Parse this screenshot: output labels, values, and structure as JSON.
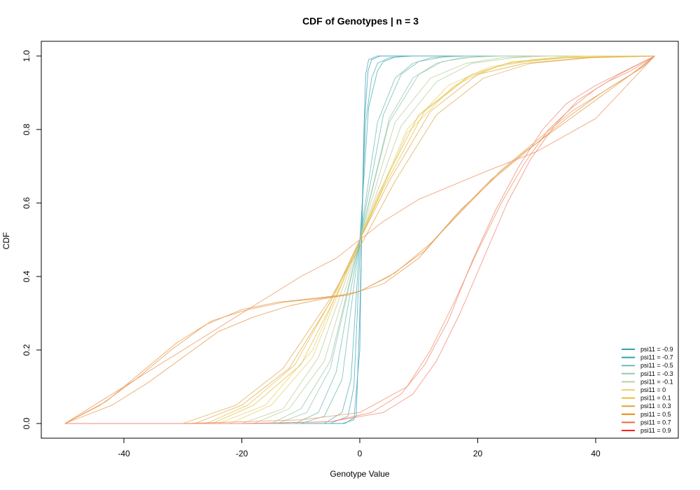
{
  "chart_data": {
    "type": "line",
    "title": "CDF of Genotypes | n = 3",
    "xlabel": "Genotype Value",
    "ylabel": "CDF",
    "xlim": [
      -50,
      50
    ],
    "ylim": [
      0,
      1
    ],
    "x_ticks": [
      -40,
      -20,
      0,
      20,
      40
    ],
    "x_tick_labels": [
      "-40",
      "-20",
      "0",
      "20",
      "40"
    ],
    "y_ticks": [
      0,
      0.2,
      0.4,
      0.6,
      0.8,
      1
    ],
    "y_tick_labels": [
      "0.0",
      "0.2",
      "0.4",
      "0.6",
      "0.8",
      "1.0"
    ],
    "grid": false,
    "legend_position": "bottom-right",
    "series": [
      {
        "name": "psi11 = -0.9",
        "color": "#46a2bd",
        "curves": [
          {
            "x": [
              -50,
              -3,
              -1,
              0,
              0.3,
              0.7,
              1,
              1.5,
              3,
              50
            ],
            "y": [
              0,
              0,
              0.01,
              0.2,
              0.5,
              0.8,
              0.95,
              0.99,
              1,
              1
            ]
          },
          {
            "x": [
              -50,
              -2.5,
              -0.6,
              0,
              0.4,
              0.8,
              1.4,
              2,
              3.5,
              50
            ],
            "y": [
              0,
              0,
              0.02,
              0.3,
              0.55,
              0.82,
              0.96,
              0.99,
              1,
              1
            ]
          }
        ]
      },
      {
        "name": "psi11 = -0.7",
        "color": "#4fb0b6",
        "curves": [
          {
            "x": [
              -50,
              -5,
              -2,
              -1,
              0,
              1,
              2,
              3,
              5,
              8,
              50
            ],
            "y": [
              0,
              0,
              0.02,
              0.1,
              0.45,
              0.82,
              0.94,
              0.98,
              0.995,
              1,
              1
            ]
          },
          {
            "x": [
              -50,
              -6,
              -3,
              -1.5,
              0,
              1.5,
              3,
              4,
              6,
              9,
              50
            ],
            "y": [
              0,
              0,
              0.03,
              0.12,
              0.5,
              0.86,
              0.96,
              0.985,
              0.997,
              1,
              1
            ]
          }
        ]
      },
      {
        "name": "psi11 = -0.5",
        "color": "#72bcb4",
        "curves": [
          {
            "x": [
              -50,
              -10,
              -6,
              -3,
              0,
              3,
              6,
              9,
              12,
              16,
              50
            ],
            "y": [
              0,
              0,
              0.02,
              0.12,
              0.5,
              0.82,
              0.94,
              0.98,
              0.995,
              1,
              1
            ]
          },
          {
            "x": [
              -50,
              -11,
              -7,
              -4,
              0,
              4,
              7,
              10,
              14,
              18,
              50
            ],
            "y": [
              0,
              0,
              0.03,
              0.14,
              0.5,
              0.84,
              0.95,
              0.985,
              0.997,
              1,
              1
            ]
          }
        ]
      },
      {
        "name": "psi11 = -0.3",
        "color": "#98c7ad",
        "curves": [
          {
            "x": [
              -50,
              -14,
              -9,
              -5,
              0,
              5,
              9,
              13,
              17,
              22,
              50
            ],
            "y": [
              0,
              0,
              0.03,
              0.15,
              0.5,
              0.83,
              0.94,
              0.98,
              0.995,
              1,
              1
            ]
          },
          {
            "x": [
              -50,
              -15,
              -10,
              -5,
              0,
              5,
              10,
              14,
              19,
              24,
              50
            ],
            "y": [
              0,
              0,
              0.04,
              0.17,
              0.5,
              0.82,
              0.95,
              0.985,
              0.997,
              1,
              1
            ]
          }
        ]
      },
      {
        "name": "psi11 = -0.1",
        "color": "#bccf9f",
        "curves": [
          {
            "x": [
              -50,
              -18,
              -12,
              -6,
              0,
              6,
              12,
              18,
              24,
              30,
              50
            ],
            "y": [
              0,
              0,
              0.04,
              0.17,
              0.5,
              0.82,
              0.94,
              0.98,
              0.995,
              1,
              1
            ]
          },
          {
            "x": [
              -50,
              -20,
              -13,
              -7,
              0,
              7,
              13,
              19,
              26,
              32,
              50
            ],
            "y": [
              0,
              0,
              0.04,
              0.18,
              0.5,
              0.81,
              0.93,
              0.98,
              0.995,
              1,
              1
            ]
          }
        ]
      },
      {
        "name": "psi11 = 0",
        "color": "#e8d36e",
        "curves": [
          {
            "x": [
              -50,
              -22,
              -15,
              -8,
              0,
              8,
              15,
              22,
              29,
              36,
              50
            ],
            "y": [
              0,
              0,
              0.05,
              0.18,
              0.5,
              0.8,
              0.92,
              0.97,
              0.99,
              1,
              1
            ]
          },
          {
            "x": [
              -50,
              -24,
              -16,
              -8,
              0,
              8,
              16,
              23,
              30,
              38,
              50
            ],
            "y": [
              0,
              0,
              0.05,
              0.2,
              0.5,
              0.79,
              0.92,
              0.97,
              0.99,
              1,
              1
            ]
          }
        ]
      },
      {
        "name": "psi11 = 0.1",
        "color": "#e8c34a",
        "curves": [
          {
            "x": [
              -50,
              -25,
              -18,
              -10,
              -3,
              0,
              3,
              10,
              18,
              25,
              35,
              50
            ],
            "y": [
              0,
              0,
              0.05,
              0.16,
              0.38,
              0.5,
              0.62,
              0.84,
              0.94,
              0.98,
              0.995,
              1
            ]
          },
          {
            "x": [
              -50,
              -26,
              -19,
              -11,
              -4,
              0,
              4,
              11,
              19,
              26,
              36,
              50
            ],
            "y": [
              0,
              0,
              0.05,
              0.16,
              0.36,
              0.5,
              0.64,
              0.85,
              0.95,
              0.985,
              0.997,
              1
            ]
          }
        ]
      },
      {
        "name": "psi11 = 0.3",
        "color": "#e3ad55",
        "curves": [
          {
            "x": [
              -50,
              -28,
              -20,
              -12,
              -5,
              0,
              5,
              12,
              20,
              28,
              38,
              50
            ],
            "y": [
              0,
              0,
              0.05,
              0.15,
              0.33,
              0.5,
              0.66,
              0.85,
              0.95,
              0.98,
              0.995,
              1
            ]
          },
          {
            "x": [
              -50,
              -30,
              -21,
              -13,
              -5,
              0,
              6,
              13,
              21,
              29,
              39,
              50
            ],
            "y": [
              0,
              0,
              0.05,
              0.15,
              0.34,
              0.48,
              0.66,
              0.84,
              0.94,
              0.98,
              0.995,
              1
            ]
          }
        ]
      },
      {
        "name": "psi11 = 0.5",
        "color": "#e69b4c",
        "curves": [
          {
            "x": [
              -50,
              -44,
              -38,
              -32,
              -26,
              -20,
              -14,
              -8,
              -3,
              0,
              4,
              10,
              16,
              22,
              28,
              34,
              40,
              46,
              50
            ],
            "y": [
              0,
              0.05,
              0.12,
              0.2,
              0.27,
              0.31,
              0.33,
              0.34,
              0.35,
              0.36,
              0.38,
              0.45,
              0.56,
              0.66,
              0.74,
              0.81,
              0.88,
              0.95,
              1
            ]
          },
          {
            "x": [
              -50,
              -43,
              -37,
              -31,
              -25,
              -19,
              -13,
              -7,
              -2,
              0,
              5,
              11,
              17,
              23,
              29,
              35,
              41,
              47,
              50
            ],
            "y": [
              0,
              0.06,
              0.14,
              0.22,
              0.28,
              0.31,
              0.33,
              0.34,
              0.35,
              0.36,
              0.4,
              0.47,
              0.58,
              0.67,
              0.75,
              0.83,
              0.9,
              0.96,
              1
            ]
          },
          {
            "x": [
              -50,
              -42,
              -36,
              -30,
              -24,
              -18,
              -12,
              -6,
              -2,
              0,
              6,
              12,
              18,
              24,
              30,
              36,
              42,
              48,
              50
            ],
            "y": [
              0,
              0.05,
              0.11,
              0.18,
              0.25,
              0.29,
              0.32,
              0.34,
              0.35,
              0.36,
              0.41,
              0.49,
              0.59,
              0.69,
              0.77,
              0.85,
              0.91,
              0.97,
              1
            ]
          }
        ]
      },
      {
        "name": "psi11 = 0.7",
        "color": "#ee9566",
        "curves": [
          {
            "x": [
              -50,
              -40,
              -30,
              -20,
              -10,
              -4,
              0,
              4,
              10,
              16,
              22,
              30,
              40,
              50
            ],
            "y": [
              0,
              0.1,
              0.2,
              0.3,
              0.4,
              0.45,
              0.5,
              0.55,
              0.61,
              0.65,
              0.69,
              0.74,
              0.83,
              1
            ]
          },
          {
            "x": [
              -50,
              -30,
              -20,
              -10,
              0,
              8,
              12,
              16,
              20,
              24,
              28,
              32,
              36,
              40,
              44,
              50
            ],
            "y": [
              0,
              0,
              0.005,
              0.01,
              0.03,
              0.1,
              0.2,
              0.33,
              0.47,
              0.6,
              0.71,
              0.8,
              0.86,
              0.91,
              0.95,
              1
            ]
          }
        ]
      },
      {
        "name": "psi11 = 0.9",
        "color": "#f28a78",
        "curves": [
          {
            "x": [
              -50,
              -20,
              -5,
              2,
              7,
              11,
              15,
              19,
              23,
              27,
              31,
              35,
              40,
              45,
              50
            ],
            "y": [
              0,
              0,
              0.005,
              0.03,
              0.08,
              0.16,
              0.28,
              0.44,
              0.58,
              0.7,
              0.8,
              0.87,
              0.92,
              0.96,
              1
            ]
          },
          {
            "x": [
              -50,
              -20,
              -5,
              4,
              9,
              13,
              17,
              21,
              25,
              29,
              33,
              37,
              42,
              46,
              50
            ],
            "y": [
              0,
              0,
              0.005,
              0.03,
              0.08,
              0.17,
              0.3,
              0.45,
              0.6,
              0.72,
              0.81,
              0.88,
              0.93,
              0.96,
              1
            ]
          }
        ]
      }
    ],
    "legend_colors": [
      "#3a9cbc",
      "#2ca3b0",
      "#72bcb4",
      "#98c7ad",
      "#bccf9f",
      "#e8d36e",
      "#e6be34",
      "#d9a441",
      "#e8880c",
      "#ee6a3a",
      "#ff2020"
    ]
  }
}
